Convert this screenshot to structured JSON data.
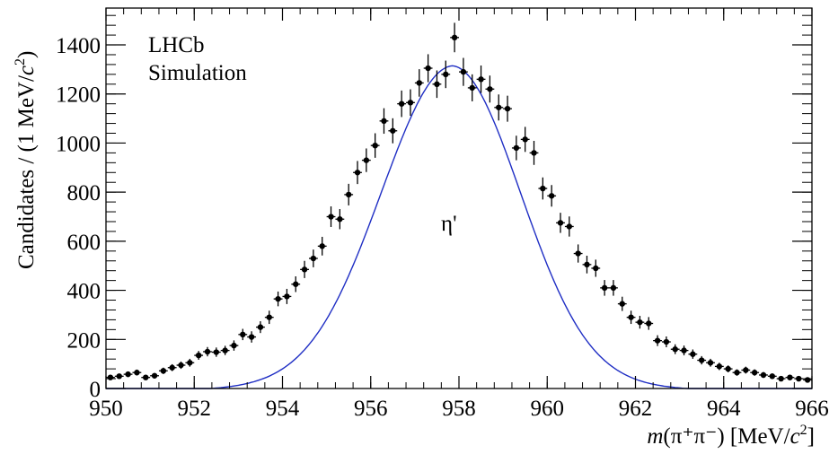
{
  "chart_data": {
    "type": "scatter",
    "annotations": [
      "LHCb",
      "Simulation",
      "η'"
    ],
    "xlabel": {
      "m": "m",
      "rest": "(π⁺π⁻) [MeV/",
      "c": "c",
      "sup": "2",
      "close": "]"
    },
    "ylabel": {
      "main": "Candidates / (1 MeV/",
      "c": "c",
      "sup": "2",
      "close": ")"
    },
    "xlim": [
      950,
      966
    ],
    "ylim": [
      0,
      1550
    ],
    "x_ticks": [
      950,
      952,
      954,
      956,
      958,
      960,
      962,
      964,
      966
    ],
    "y_ticks": [
      0,
      200,
      400,
      600,
      800,
      1000,
      1200,
      1400
    ],
    "colors": {
      "points": "#000000",
      "fit": "#1f2ec4"
    },
    "series": [
      {
        "x": [
          950.1,
          950.3,
          950.5,
          950.7,
          950.9,
          951.1,
          951.3,
          951.5,
          951.7,
          951.9,
          952.1,
          952.3,
          952.5,
          952.7,
          952.9,
          953.1,
          953.3,
          953.5,
          953.7,
          953.9,
          954.1,
          954.3,
          954.5,
          954.7,
          954.9,
          955.1,
          955.3,
          955.5,
          955.7,
          955.9,
          956.1,
          956.3,
          956.5,
          956.7,
          956.9,
          957.1,
          957.3,
          957.5,
          957.7,
          957.9,
          958.1,
          958.3,
          958.5,
          958.7,
          958.9,
          959.1,
          959.3,
          959.5,
          959.7,
          959.9,
          960.1,
          960.3,
          960.5,
          960.7,
          960.9,
          961.1,
          961.3,
          961.5,
          961.7,
          961.9,
          962.1,
          962.3,
          962.5,
          962.7,
          962.9,
          963.1,
          963.3,
          963.5,
          963.7,
          963.9,
          964.1,
          964.3,
          964.5,
          964.7,
          964.9,
          965.1,
          965.3,
          965.5,
          965.7,
          965.9
        ],
        "y": [
          45,
          50,
          58,
          65,
          45,
          52,
          72,
          85,
          95,
          105,
          135,
          150,
          148,
          155,
          175,
          220,
          210,
          250,
          290,
          365,
          375,
          425,
          485,
          530,
          580,
          700,
          690,
          790,
          880,
          930,
          990,
          1090,
          1050,
          1160,
          1165,
          1245,
          1305,
          1240,
          1280,
          1430,
          1290,
          1225,
          1260,
          1220,
          1145,
          1140,
          980,
          1015,
          960,
          815,
          785,
          675,
          660,
          550,
          505,
          490,
          410,
          410,
          345,
          290,
          270,
          265,
          195,
          190,
          160,
          155,
          140,
          115,
          105,
          90,
          80,
          65,
          75,
          65,
          55,
          50,
          40,
          45,
          40,
          35
        ],
        "yerr": [
          9,
          10,
          11,
          12,
          10,
          11,
          13,
          14,
          15,
          16,
          18,
          19,
          19,
          19,
          21,
          23,
          23,
          24,
          27,
          30,
          31,
          32,
          35,
          36,
          38,
          42,
          41,
          44,
          47,
          48,
          50,
          52,
          51,
          54,
          54,
          56,
          57,
          56,
          56,
          60,
          57,
          55,
          56,
          55,
          53,
          53,
          50,
          51,
          49,
          45,
          44,
          41,
          41,
          37,
          36,
          35,
          32,
          32,
          29,
          27,
          26,
          26,
          22,
          22,
          20,
          20,
          19,
          17,
          16,
          15,
          14,
          13,
          14,
          13,
          12,
          11,
          10,
          11,
          10,
          9
        ]
      }
    ],
    "fit": {
      "type": "line",
      "description_shown": false
    }
  }
}
